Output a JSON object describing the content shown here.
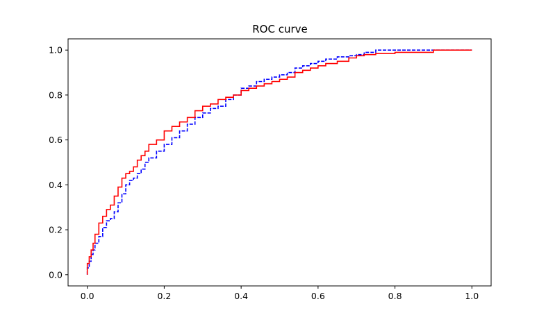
{
  "chart_data": {
    "type": "line",
    "title": "ROC curve",
    "xlabel": "",
    "ylabel": "",
    "xlim": [
      -0.05,
      1.05
    ],
    "ylim": [
      -0.05,
      1.05
    ],
    "xticks": [
      "0.0",
      "0.2",
      "0.4",
      "0.6",
      "0.8",
      "1.0"
    ],
    "yticks": [
      "0.0",
      "0.2",
      "0.4",
      "0.6",
      "0.8",
      "1.0"
    ],
    "grid": false,
    "legend": "none",
    "series": [
      {
        "color": "#0000ff",
        "style": "dashed",
        "x": [
          0.0,
          0.005,
          0.01,
          0.015,
          0.02,
          0.03,
          0.04,
          0.05,
          0.06,
          0.07,
          0.08,
          0.09,
          0.1,
          0.11,
          0.12,
          0.13,
          0.14,
          0.15,
          0.16,
          0.18,
          0.2,
          0.22,
          0.24,
          0.26,
          0.28,
          0.3,
          0.32,
          0.34,
          0.36,
          0.38,
          0.4,
          0.42,
          0.44,
          0.46,
          0.48,
          0.5,
          0.52,
          0.54,
          0.56,
          0.58,
          0.6,
          0.62,
          0.65,
          0.68,
          0.7,
          0.72,
          0.75,
          0.8,
          0.85,
          0.9,
          0.95,
          1.0
        ],
        "y": [
          0.0,
          0.03,
          0.06,
          0.09,
          0.11,
          0.14,
          0.17,
          0.21,
          0.24,
          0.25,
          0.28,
          0.32,
          0.36,
          0.4,
          0.42,
          0.43,
          0.45,
          0.47,
          0.5,
          0.52,
          0.55,
          0.58,
          0.61,
          0.64,
          0.67,
          0.7,
          0.72,
          0.74,
          0.75,
          0.78,
          0.8,
          0.83,
          0.84,
          0.86,
          0.87,
          0.88,
          0.89,
          0.9,
          0.92,
          0.93,
          0.94,
          0.95,
          0.96,
          0.97,
          0.975,
          0.98,
          0.99,
          1.0,
          1.0,
          1.0,
          1.0,
          1.0
        ]
      },
      {
        "color": "#ff0000",
        "style": "solid",
        "x": [
          0.0,
          0.005,
          0.01,
          0.015,
          0.02,
          0.03,
          0.04,
          0.05,
          0.06,
          0.07,
          0.08,
          0.09,
          0.1,
          0.11,
          0.12,
          0.13,
          0.14,
          0.15,
          0.16,
          0.18,
          0.2,
          0.22,
          0.24,
          0.26,
          0.28,
          0.3,
          0.32,
          0.34,
          0.36,
          0.38,
          0.4,
          0.42,
          0.44,
          0.46,
          0.48,
          0.5,
          0.52,
          0.54,
          0.56,
          0.58,
          0.6,
          0.62,
          0.65,
          0.68,
          0.7,
          0.72,
          0.75,
          0.8,
          0.85,
          0.9,
          0.95,
          1.0
        ],
        "y": [
          0.0,
          0.05,
          0.08,
          0.11,
          0.14,
          0.18,
          0.23,
          0.26,
          0.29,
          0.31,
          0.35,
          0.39,
          0.43,
          0.45,
          0.46,
          0.48,
          0.51,
          0.53,
          0.55,
          0.58,
          0.6,
          0.64,
          0.66,
          0.68,
          0.7,
          0.73,
          0.75,
          0.76,
          0.78,
          0.79,
          0.8,
          0.82,
          0.83,
          0.84,
          0.85,
          0.86,
          0.87,
          0.88,
          0.9,
          0.91,
          0.92,
          0.93,
          0.94,
          0.95,
          0.965,
          0.975,
          0.98,
          0.985,
          0.99,
          0.99,
          1.0,
          1.0
        ]
      }
    ]
  }
}
